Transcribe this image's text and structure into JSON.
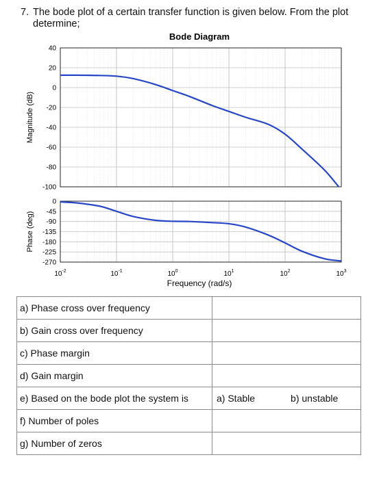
{
  "question": {
    "number": "7.",
    "text": "The bode plot of a certain transfer function is given below. From the plot determine;"
  },
  "chart_data": {
    "type": "line",
    "title": "Bode Diagram",
    "xlabel": "Frequency (rad/s)",
    "xscale": "log",
    "xlim": [
      0.01,
      1000
    ],
    "xticks": [
      {
        "base": "10",
        "exp": "-2"
      },
      {
        "base": "10",
        "exp": "-1"
      },
      {
        "base": "10",
        "exp": "0"
      },
      {
        "base": "10",
        "exp": "1"
      },
      {
        "base": "10",
        "exp": "2"
      },
      {
        "base": "10",
        "exp": "3"
      }
    ],
    "grid": true,
    "color": "#2745c8",
    "panels": [
      {
        "ylabel": "Magnitude (dB)",
        "ylim": [
          -100,
          40
        ],
        "yticks": [
          "40",
          "20",
          "0",
          "-20",
          "-40",
          "-60",
          "-80",
          "-100"
        ],
        "ytick_values": [
          40,
          20,
          0,
          -20,
          -40,
          -60,
          -80,
          -100
        ],
        "series": [
          {
            "x": [
              0.01,
              0.02,
              0.05,
              0.1,
              0.2,
              0.5,
              1,
              2,
              5,
              10,
              20,
              50,
              100,
              200,
              500,
              900
            ],
            "y": [
              12.5,
              12.5,
              12.2,
              11.5,
              9,
              3,
              -3,
              -9,
              -18,
              -24,
              -30,
              -37,
              -47,
              -62,
              -83,
              -100
            ]
          }
        ]
      },
      {
        "ylabel": "Phase (deg)",
        "ylim": [
          -270,
          0
        ],
        "yticks": [
          "0",
          "-45",
          "-90",
          "-135",
          "-180",
          "-225",
          "-270"
        ],
        "ytick_values": [
          0,
          -45,
          -90,
          -135,
          -180,
          -225,
          -270
        ],
        "series": [
          {
            "x": [
              0.01,
              0.02,
              0.05,
              0.1,
              0.2,
              0.5,
              1,
              2,
              5,
              10,
              20,
              50,
              100,
              200,
              500,
              1000
            ],
            "y": [
              -3,
              -8,
              -22,
              -45,
              -68,
              -85,
              -89,
              -90,
              -95,
              -100,
              -115,
              -150,
              -185,
              -222,
              -255,
              -265
            ]
          }
        ]
      }
    ]
  },
  "answers": {
    "rows": [
      {
        "label": "a) Phase cross over frequency"
      },
      {
        "label": "b) Gain cross over frequency"
      },
      {
        "label": "c) Phase margin"
      },
      {
        "label": "d) Gain margin"
      },
      {
        "label": "e) Based on the bode plot the system is",
        "option_a": "a) Stable",
        "option_b": "b) unstable"
      },
      {
        "label": "f)  Number of poles"
      },
      {
        "label": "g) Number of zeros"
      }
    ]
  }
}
